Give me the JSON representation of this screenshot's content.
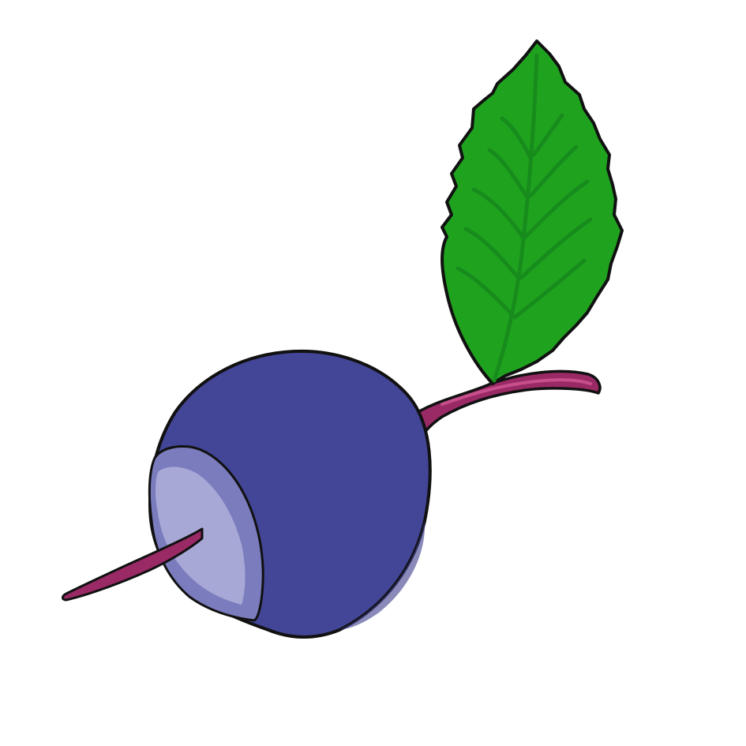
{
  "illustration": {
    "subject_icons": [
      "radish-icon",
      "leaf-icon",
      "stem-icon",
      "root-icon"
    ]
  },
  "colors": {
    "background": "#ffffff",
    "bulb": "#434596",
    "bulb_shade": "#3a3c8a",
    "cut_face": "#a7a8d6",
    "cut_face_rim": "#7a7cbe",
    "stem": "#9a2a66",
    "stem_highlight": "#c74f8c",
    "leaf": "#1fa31f",
    "leaf_vein": "#178c1c",
    "outline": "#111111"
  }
}
